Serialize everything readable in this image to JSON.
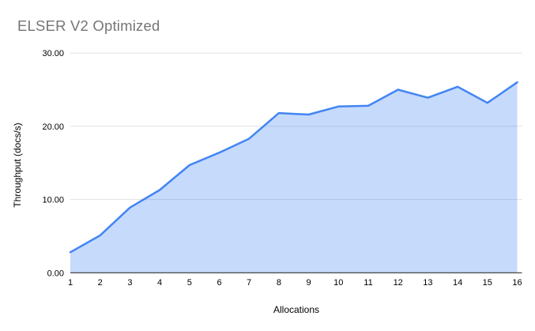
{
  "colors": {
    "line": "#4285f4",
    "fill": "rgba(66,133,244,0.30)",
    "grid": "#e0e0e0",
    "axis": "#333333",
    "title_text": "#757575",
    "label_text": "#000000"
  },
  "chart_data": {
    "type": "area",
    "title": "ELSER V2 Optimized",
    "xlabel": "Allocations",
    "ylabel": "Throughput (docs/s)",
    "categories": [
      "1",
      "2",
      "3",
      "4",
      "5",
      "6",
      "7",
      "8",
      "9",
      "10",
      "11",
      "12",
      "13",
      "14",
      "15",
      "16"
    ],
    "series": [
      {
        "name": "Throughput",
        "values": [
          2.8,
          5.1,
          8.9,
          11.3,
          14.7,
          16.4,
          18.3,
          21.8,
          21.6,
          22.7,
          22.8,
          25.0,
          23.9,
          25.4,
          23.2,
          26.0
        ]
      }
    ],
    "ylim": [
      0,
      30
    ],
    "y_ticks": [
      {
        "value": 0,
        "label": "0.00"
      },
      {
        "value": 10,
        "label": "10.00"
      },
      {
        "value": 20,
        "label": "20.00"
      },
      {
        "value": 30,
        "label": "30.00"
      }
    ],
    "grid": true,
    "legend": "none",
    "markers": "none"
  }
}
